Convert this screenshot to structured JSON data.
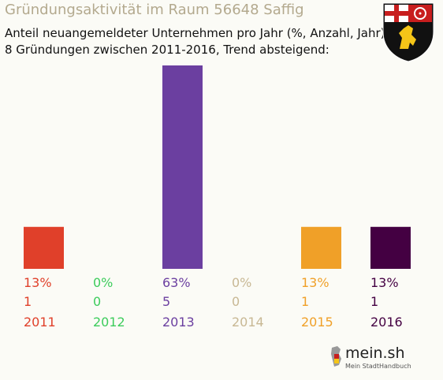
{
  "header": {
    "title": "Gründungsaktivität im Raum 56648 Saffig",
    "subtitle_line1": "Anteil neuangemeldeter Unternehmen pro Jahr (%, Anzahl, Jahr)",
    "subtitle_line2": "8 Gründungen zwischen 2011-2016, Trend absteigend:"
  },
  "branding": {
    "logo_text": "mein.sh",
    "logo_subtext": "Mein StadtHandbuch",
    "crest_icon": "rhineland-palatinate-crest-icon"
  },
  "chart_data": {
    "type": "bar",
    "categories": [
      "2011",
      "2012",
      "2013",
      "2014",
      "2015",
      "2016"
    ],
    "values": [
      13,
      0,
      63,
      0,
      13,
      13
    ],
    "percent_labels": [
      "13%",
      "0%",
      "63%",
      "0%",
      "13%",
      "13%"
    ],
    "counts": [
      "1",
      "0",
      "5",
      "0",
      "1",
      "1"
    ],
    "colors": [
      "#e0402a",
      "#3dcc5c",
      "#6b3fa0",
      "#c8b894",
      "#f0a028",
      "#440042"
    ],
    "ylim": [
      0,
      63
    ]
  }
}
